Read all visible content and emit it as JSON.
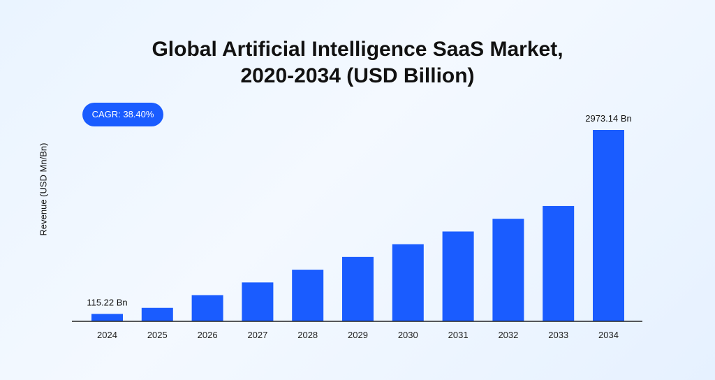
{
  "chart_data": {
    "type": "bar",
    "title_line1": "Global Artificial Intelligence SaaS Market,",
    "title_line2": "2020-2034 (USD Billion)",
    "ylabel": "Revenue (USD Mn/Bn)",
    "annotation": "CAGR: 38.40%",
    "categories": [
      "2024",
      "2025",
      "2026",
      "2027",
      "2028",
      "2029",
      "2030",
      "2031",
      "2032",
      "2033",
      "2034"
    ],
    "values": [
      115.22,
      209,
      407,
      604,
      802,
      1000,
      1198,
      1395,
      1593,
      1791,
      2973.14
    ],
    "data_labels": {
      "0": "115.22 Bn",
      "10": "2973.14 Bn"
    },
    "bar_color": "#1a5cff",
    "ylim": [
      0,
      3000
    ],
    "grid": false
  }
}
